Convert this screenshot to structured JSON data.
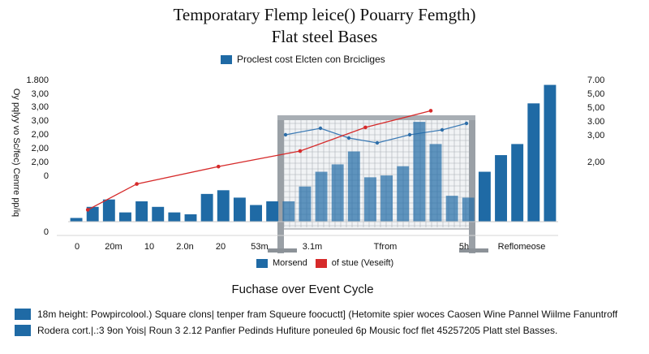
{
  "chart_data": {
    "type": "bar",
    "title": "Temporatary  Flemp leice() Pouarry Femgth)",
    "subtitle": "Flat steel Bases",
    "caption": "Fuchase over Event Cycle",
    "ylabel": "Oy pqlyy vo Sc/fec) Cenrre pp/iq",
    "left_y_ticks": [
      "1.800",
      "3,00",
      "3,00",
      "3,00",
      "2,00",
      "2,00",
      "2,00",
      "0",
      "0"
    ],
    "right_y_ticks": [
      "7.00",
      "5,00",
      "5,00",
      "3.00",
      "3,00",
      "2,00"
    ],
    "x_ticks": [
      "0",
      "20m",
      "10",
      "2.0n",
      "20",
      "53m",
      "3.1m",
      "Tfrom",
      "5h",
      "Reflomeose"
    ],
    "legend_top": "Proclest cost Elcten con Brcicliges",
    "legend_mid": [
      {
        "label": "Morsend",
        "color": "#1f6aa5"
      },
      {
        "label": "of stue (Veseift)",
        "color": "#d62a2a"
      }
    ],
    "ylim": [
      0,
      3.8
    ],
    "series": [
      {
        "name": "Morsend",
        "kind": "bar",
        "color": "#1f6aa5",
        "values": [
          0.1,
          0.4,
          0.6,
          0.25,
          0.55,
          0.4,
          0.25,
          0.2,
          0.75,
          0.85,
          0.65,
          0.45,
          0.55,
          0.55,
          0.95,
          1.35,
          1.55,
          1.9,
          1.2,
          1.25,
          1.5,
          2.7,
          2.1,
          0.7,
          0.65,
          1.35,
          1.8,
          2.1,
          3.2,
          3.7
        ]
      },
      {
        "name": "of stue (Veseift)",
        "kind": "line",
        "color": "#d62a2a",
        "x_index": [
          1,
          4,
          9,
          14,
          18,
          22
        ],
        "values": [
          0.32,
          1.02,
          1.49,
          1.91,
          2.55,
          3.0
        ]
      }
    ]
  },
  "footer": [
    {
      "color": "#1f6aa5",
      "text": "18m height: Powpircolool.) Square clons| tenper fram Squeure foocuctt] (Hetomite spier woces Caosen Wine Pannel Wiilme Fanuntroff"
    },
    {
      "color": "#1f6aa5",
      "text": "Rodera cort.|.:3 9on Yois| Roun 3 2.12 Panfier Pedinds Hufiture poneuled 6p Mousic focf flet 45257205 Platt stel Basses."
    }
  ]
}
